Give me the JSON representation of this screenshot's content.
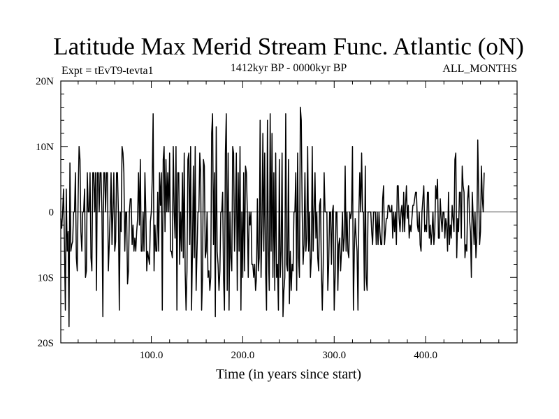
{
  "chart_data": {
    "type": "line",
    "title": "Latitude Max Merid Stream Func. Atlantic (oN)",
    "subtitle_left": "Expt = tEvT9-tevta1",
    "subtitle_center": "1412kyr BP - 0000kyr BP",
    "subtitle_right": "ALL_MONTHS",
    "xlabel": "Time (in years since start)",
    "ylabel": "",
    "xlim": [
      1,
      500
    ],
    "ylim": [
      -20,
      20
    ],
    "xticks": [
      {
        "value": 100,
        "label": "100.0"
      },
      {
        "value": 200,
        "label": "200.0"
      },
      {
        "value": 300,
        "label": "300.0"
      },
      {
        "value": 400,
        "label": "400.0"
      }
    ],
    "yticks": [
      {
        "value": 20,
        "label": "20N"
      },
      {
        "value": 10,
        "label": "10N"
      },
      {
        "value": 0,
        "label": "0"
      },
      {
        "value": -10,
        "label": "10S"
      },
      {
        "value": -20,
        "label": "20S"
      }
    ],
    "zero_line": true,
    "series": [
      {
        "name": "latitude",
        "color": "#000000",
        "x_start": 1,
        "x_step": 1,
        "values": [
          -1,
          -2.5,
          0,
          3.5,
          -5,
          -15,
          3.5,
          -6,
          -3,
          -17.5,
          7.5,
          -6,
          -5,
          -4.5,
          0,
          0,
          6,
          -7,
          -9,
          2.5,
          10,
          8,
          -3,
          -6,
          0,
          0,
          3.5,
          -10,
          -9,
          6,
          0,
          0,
          6,
          -7,
          -9,
          6,
          6,
          0,
          6,
          -12,
          6,
          6,
          0,
          6,
          6,
          0,
          -16,
          6,
          6,
          0,
          6,
          6,
          -9,
          -5,
          0,
          6,
          -5,
          0,
          6,
          -6,
          -4.5,
          6,
          6,
          0,
          -15,
          0,
          -3,
          10,
          9,
          6,
          -6,
          0,
          0,
          -11,
          -9,
          0,
          2,
          2,
          -5,
          -2,
          -6,
          -4,
          -6,
          -3,
          -1,
          6,
          -2,
          8,
          -6,
          -6,
          0,
          -6,
          6,
          0,
          -9,
          -6,
          -7,
          -8,
          -1.5,
          0,
          5,
          15,
          -9,
          -2,
          -6,
          -6,
          3,
          -6,
          6,
          1,
          6,
          -15,
          8,
          10,
          -3,
          8,
          0,
          6,
          0,
          9,
          -6,
          -6,
          -7,
          10,
          0,
          -4,
          10,
          -15,
          6,
          6,
          -8,
          0,
          -6,
          6,
          -7,
          9,
          -9,
          -15,
          -9,
          8,
          9,
          -5,
          10,
          -15,
          -6,
          7,
          -7,
          10,
          -12,
          -6,
          0,
          0,
          9,
          6,
          -15,
          -10,
          8,
          7,
          -7,
          -6,
          0,
          -10,
          -9,
          -12,
          -10,
          12,
          15,
          -5,
          6,
          -16,
          13,
          -6,
          -8,
          -12,
          -9,
          0,
          0,
          3,
          -10,
          -15,
          9,
          15,
          -12,
          9,
          -15,
          0,
          -7,
          -9,
          10,
          9,
          -6,
          0,
          9,
          -12,
          6,
          -6,
          10,
          -15,
          0,
          -10,
          6,
          -9,
          7,
          6,
          0,
          -10,
          0,
          -2,
          0,
          -8,
          -8,
          -10,
          -8,
          -12,
          -10,
          2,
          -9,
          -7,
          14,
          -10,
          -2,
          12,
          -6,
          9,
          -9,
          -15,
          14,
          -6,
          -12,
          15,
          -6,
          12,
          -10,
          6,
          -12,
          9,
          -10,
          -8,
          -15,
          8,
          -10,
          -6,
          9,
          -16,
          -12,
          -10,
          15,
          -8,
          -9,
          8,
          -14,
          -6,
          -12,
          -8,
          -9,
          0,
          0,
          6,
          -12,
          9,
          -7,
          -10,
          16,
          14,
          0,
          -8,
          -5,
          6,
          -6,
          -4,
          10,
          -6,
          0,
          -10,
          -7,
          10,
          -6,
          0,
          6,
          -4,
          0,
          -7,
          -9,
          1,
          2,
          -9,
          -15,
          -8,
          6,
          0,
          0,
          0,
          -12,
          -8,
          0,
          0,
          -8,
          0,
          1,
          -15,
          -10,
          0,
          0,
          -12,
          -5,
          -4,
          -9,
          -6,
          0,
          -6,
          -4,
          7,
          -6,
          0,
          -6,
          -7,
          0,
          -1,
          0,
          10,
          -15,
          -6,
          -1,
          -4,
          -6,
          -15,
          0,
          6,
          0,
          9,
          0,
          0,
          -12,
          7,
          -10,
          -12,
          0,
          0,
          0,
          0,
          -3,
          -5,
          0,
          0,
          0,
          -5,
          0,
          -5,
          0,
          -3,
          -5,
          -5,
          2,
          4,
          -5,
          -3,
          -1,
          -1,
          1,
          1,
          0,
          0,
          1,
          -4,
          0,
          -3,
          0,
          -5,
          4,
          4,
          -1,
          -3,
          0,
          1,
          -3,
          3,
          -3,
          1,
          4,
          -1,
          1,
          -4,
          -2,
          -3,
          -1,
          1,
          1,
          2,
          3,
          3,
          -2,
          -3,
          0,
          -5,
          -6,
          0,
          2,
          4,
          -3,
          -2,
          -3,
          3,
          3,
          -4,
          -2,
          -5,
          -3,
          0,
          -5,
          -3,
          4,
          2,
          5,
          -4,
          -4,
          2,
          -1,
          -3,
          0,
          0,
          -4,
          -1,
          -2,
          -6,
          3,
          -5,
          -2,
          -4,
          1,
          -1,
          -3,
          8,
          9,
          -7,
          -1,
          -3,
          3,
          3,
          -4,
          7,
          4,
          3,
          -7,
          -5,
          -6,
          2,
          4,
          -1,
          -3,
          -10,
          3,
          -1,
          -5,
          0,
          -7,
          -4,
          11,
          3,
          -5,
          -3,
          7,
          2,
          0,
          6
        ]
      }
    ]
  }
}
